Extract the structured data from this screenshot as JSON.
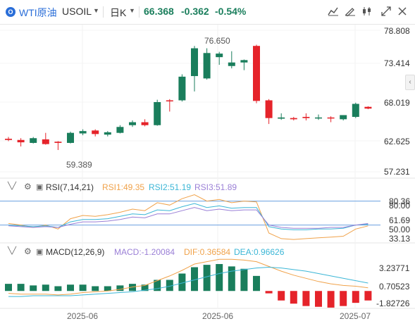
{
  "header": {
    "symbol_name": "WTI原油",
    "symbol_code": "USOIL",
    "period": "日K",
    "price": "66.368",
    "change": "-0.362",
    "change_pct": "-0.54%",
    "up_color": "#1a7e5c",
    "down_color": "#e5232a",
    "icons": [
      "indicator-icon",
      "draw-tool-icon",
      "scale-icon",
      "candle-type-icon",
      "fullscreen-icon",
      "close-icon"
    ]
  },
  "price_axis": {
    "labels": [
      "78.808",
      "73.414",
      "68.019",
      "62.625",
      "57.231"
    ]
  },
  "annotations": {
    "high": "76.650",
    "low": "59.389"
  },
  "rsi": {
    "name": "RSI(7,14,21)",
    "rsi1": "RSI1:49.35",
    "rsi2": "RSI2:51.19",
    "rsi3": "RSI3:51.89",
    "colors": {
      "rsi1": "#f0a24a",
      "rsi2": "#3bb6d6",
      "rsi3": "#9a7fd6"
    },
    "axis_labels": [
      "80.36",
      "80.00",
      "61.69",
      "50.00",
      "33.13"
    ]
  },
  "macd": {
    "name": "MACD(12,26,9)",
    "macd": "MACD:-1.20084",
    "dif": "DIF:0.36584",
    "dea": "DEA:0.96626",
    "colors": {
      "macd": "#9a7fd6",
      "dif": "#f0a24a",
      "dea": "#3bb6d6"
    },
    "axis_labels": [
      "3.23771",
      "0.70523",
      "-1.82726"
    ]
  },
  "x_axis": {
    "labels": [
      "2025-06",
      "2025-06",
      "2025-07"
    ]
  },
  "chart_data": {
    "type": "candlestick",
    "price_ylim": [
      55,
      80
    ],
    "candles": [
      {
        "o": 61.3,
        "h": 61.6,
        "l": 60.9,
        "c": 61.1
      },
      {
        "o": 61.1,
        "h": 61.4,
        "l": 60.0,
        "c": 60.7
      },
      {
        "o": 60.6,
        "h": 61.6,
        "l": 60.5,
        "c": 61.4
      },
      {
        "o": 61.2,
        "h": 62.3,
        "l": 60.3,
        "c": 60.4
      },
      {
        "o": 60.8,
        "h": 60.9,
        "l": 59.4,
        "c": 60.6
      },
      {
        "o": 60.6,
        "h": 62.5,
        "l": 60.5,
        "c": 62.3
      },
      {
        "o": 62.2,
        "h": 62.9,
        "l": 61.9,
        "c": 62.6
      },
      {
        "o": 62.7,
        "h": 62.9,
        "l": 61.7,
        "c": 62.1
      },
      {
        "o": 62.0,
        "h": 62.6,
        "l": 61.7,
        "c": 62.4
      },
      {
        "o": 62.3,
        "h": 63.6,
        "l": 62.2,
        "c": 63.3
      },
      {
        "o": 63.6,
        "h": 64.4,
        "l": 63.3,
        "c": 64.1
      },
      {
        "o": 64.1,
        "h": 64.6,
        "l": 63.4,
        "c": 63.6
      },
      {
        "o": 63.6,
        "h": 67.9,
        "l": 63.5,
        "c": 67.5
      },
      {
        "o": 67.8,
        "h": 68.0,
        "l": 65.9,
        "c": 67.7
      },
      {
        "o": 67.8,
        "h": 72.2,
        "l": 67.6,
        "c": 71.8
      },
      {
        "o": 71.9,
        "h": 77.0,
        "l": 69.3,
        "c": 76.6
      },
      {
        "o": 71.5,
        "h": 76.6,
        "l": 71.3,
        "c": 75.8
      },
      {
        "o": 75.1,
        "h": 76.0,
        "l": 73.8,
        "c": 75.7
      },
      {
        "o": 73.6,
        "h": 76.1,
        "l": 73.2,
        "c": 74.2
      },
      {
        "o": 74.2,
        "h": 74.7,
        "l": 72.9,
        "c": 74.6
      },
      {
        "o": 77.0,
        "h": 77.2,
        "l": 67.3,
        "c": 67.7
      },
      {
        "o": 67.8,
        "h": 68.0,
        "l": 63.8,
        "c": 64.8
      },
      {
        "o": 64.7,
        "h": 65.6,
        "l": 64.5,
        "c": 64.9
      },
      {
        "o": 64.8,
        "h": 65.0,
        "l": 64.4,
        "c": 64.6
      },
      {
        "o": 65.0,
        "h": 65.6,
        "l": 64.4,
        "c": 64.8
      },
      {
        "o": 64.8,
        "h": 65.4,
        "l": 64.5,
        "c": 64.9
      },
      {
        "o": 64.9,
        "h": 65.1,
        "l": 64.1,
        "c": 64.8
      },
      {
        "o": 64.6,
        "h": 65.3,
        "l": 64.4,
        "c": 65.3
      },
      {
        "o": 65.0,
        "h": 67.4,
        "l": 64.8,
        "c": 67.2
      },
      {
        "o": 66.7,
        "h": 66.8,
        "l": 66.3,
        "c": 66.4
      }
    ],
    "rsi_ylim": [
      25,
      92
    ],
    "rsi1": [
      52,
      50,
      47,
      50,
      45,
      58,
      62,
      61,
      63,
      66,
      70,
      68,
      78,
      75,
      83,
      88,
      80,
      82,
      78,
      80,
      79,
      40,
      33,
      32,
      33,
      34,
      35,
      36,
      45,
      49
    ],
    "rsi2": [
      50,
      49,
      48,
      49,
      47,
      54,
      57,
      57,
      58,
      61,
      64,
      63,
      69,
      68,
      73,
      77,
      72,
      74,
      71,
      72,
      72,
      48,
      45,
      44,
      44,
      45,
      45,
      46,
      50,
      51
    ],
    "rsi3": [
      49,
      48,
      47,
      48,
      47,
      51,
      54,
      54,
      55,
      57,
      60,
      59,
      64,
      64,
      68,
      72,
      68,
      70,
      68,
      69,
      69,
      50,
      47,
      46,
      46,
      46,
      47,
      47,
      50,
      52
    ],
    "macd_ylim": [
      -2.2,
      4.2
    ],
    "macd_hist": [
      0.9,
      0.9,
      0.7,
      0.8,
      0.6,
      0.8,
      0.8,
      0.6,
      0.6,
      0.7,
      0.9,
      0.8,
      1.4,
      1.4,
      2.2,
      3.0,
      3.3,
      3.4,
      3.1,
      2.8,
      1.9,
      -0.3,
      -1.2,
      -1.6,
      -1.9,
      -2.0,
      -2.1,
      -1.9,
      -1.5,
      -1.2
    ],
    "dif": [
      -0.3,
      -0.4,
      -0.4,
      -0.4,
      -0.5,
      -0.4,
      -0.2,
      -0.1,
      0.0,
      0.2,
      0.5,
      0.7,
      1.3,
      1.9,
      2.6,
      3.4,
      3.7,
      4.0,
      4.0,
      3.9,
      3.7,
      3.1,
      2.5,
      2.0,
      1.6,
      1.2,
      0.9,
      0.7,
      0.6,
      0.4
    ],
    "dea": [
      -0.7,
      -0.7,
      -0.6,
      -0.6,
      -0.6,
      -0.6,
      -0.5,
      -0.4,
      -0.3,
      -0.2,
      -0.1,
      0.1,
      0.3,
      0.6,
      1.0,
      1.4,
      1.8,
      2.2,
      2.5,
      2.7,
      2.9,
      3.0,
      2.9,
      2.7,
      2.5,
      2.2,
      1.9,
      1.6,
      1.3,
      1.0
    ]
  }
}
